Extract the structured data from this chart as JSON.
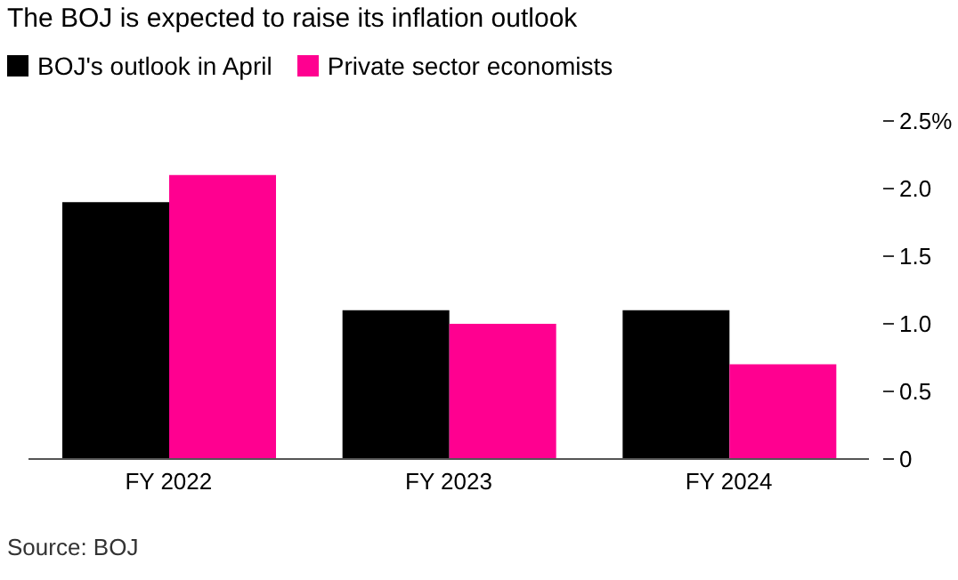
{
  "chart_data": {
    "type": "bar",
    "title": "The BOJ is expected to raise its inflation outlook",
    "categories": [
      "FY 2022",
      "FY 2023",
      "FY 2024"
    ],
    "series": [
      {
        "name": "BOJ's outlook in April",
        "color": "#000000",
        "values": [
          1.9,
          1.1,
          1.1
        ]
      },
      {
        "name": "Private sector economists",
        "color": "#ff0090",
        "values": [
          2.1,
          1.0,
          0.7
        ]
      }
    ],
    "ylim": [
      0,
      2.5
    ],
    "yticks": [
      0,
      {
        "value": 0.5,
        "label": "0.5"
      },
      {
        "value": 1,
        "label": "1.0"
      },
      {
        "value": 1.5,
        "label": "1.5"
      },
      {
        "value": 2,
        "label": "2.0"
      },
      {
        "value": 2.5,
        "label": "2.5%"
      }
    ],
    "legend": "top left",
    "annotations": [
      "Source: BOJ"
    ]
  }
}
